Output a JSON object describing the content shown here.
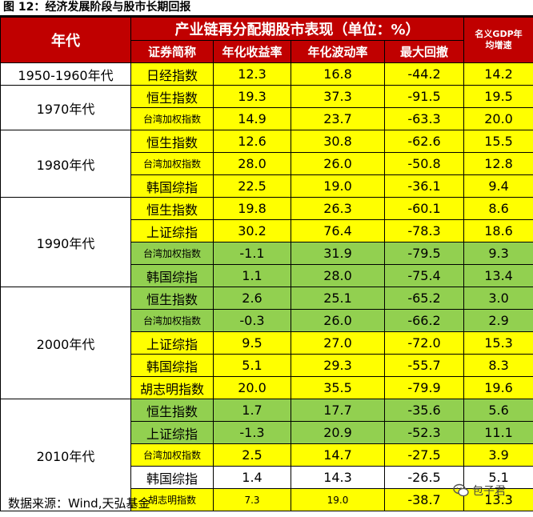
{
  "figure_title": "图 12：经济发展阶段与股市长期回报",
  "header": {
    "era": "年代",
    "main": "产业链再分配期股市表现（单位：%）",
    "gdp": [
      "名义GDP年",
      "均增速"
    ],
    "cols": [
      "证券简称",
      "年化收益率",
      "年化波动率",
      "最大回撤"
    ]
  },
  "rows": [
    {
      "era": "1950-1960年代",
      "name": "日经指数",
      "ret": "12.3",
      "vol": "16.8",
      "dd": "-44.2",
      "gdp": "14.2",
      "bg": "yellow"
    },
    {
      "era": "1970年代",
      "name": "恒生指数",
      "ret": "19.3",
      "vol": "37.3",
      "dd": "-91.5",
      "gdp": "19.5",
      "bg": "yellow"
    },
    {
      "era": "",
      "name": "台湾加权指数",
      "ret": "14.9",
      "vol": "23.7",
      "dd": "-63.3",
      "gdp": "20.0",
      "bg": "yellow",
      "small_name": true
    },
    {
      "era": "1980年代",
      "name": "恒生指数",
      "ret": "12.6",
      "vol": "30.8",
      "dd": "-62.6",
      "gdp": "15.5",
      "bg": "yellow"
    },
    {
      "era": "",
      "name": "台湾加权指数",
      "ret": "28.0",
      "vol": "26.0",
      "dd": "-50.8",
      "gdp": "12.8",
      "bg": "yellow",
      "small_name": true
    },
    {
      "era": "",
      "name": "韩国综指",
      "ret": "22.5",
      "vol": "19.0",
      "dd": "-36.1",
      "gdp": "9.4",
      "bg": "yellow"
    },
    {
      "era": "1990年代",
      "name": "恒生指数",
      "ret": "19.8",
      "vol": "26.3",
      "dd": "-60.1",
      "gdp": "8.6",
      "bg": "yellow"
    },
    {
      "era": "",
      "name": "上证综指",
      "ret": "30.2",
      "vol": "76.4",
      "dd": "-78.3",
      "gdp": "18.6",
      "bg": "yellow"
    },
    {
      "era": "",
      "name": "台湾加权指数",
      "ret": "-1.1",
      "vol": "31.9",
      "dd": "-79.5",
      "gdp": "9.3",
      "bg": "green",
      "small_name": true
    },
    {
      "era": "",
      "name": "韩国综指",
      "ret": "1.1",
      "vol": "28.0",
      "dd": "-75.4",
      "gdp": "13.4",
      "bg": "green"
    },
    {
      "era": "2000年代",
      "name": "恒生指数",
      "ret": "2.6",
      "vol": "25.1",
      "dd": "-65.2",
      "gdp": "3.0",
      "bg": "green"
    },
    {
      "era": "",
      "name": "台湾加权指数",
      "ret": "-0.3",
      "vol": "26.0",
      "dd": "-66.2",
      "gdp": "2.9",
      "bg": "green",
      "small_name": true
    },
    {
      "era": "",
      "name": "上证综指",
      "ret": "9.5",
      "vol": "27.0",
      "dd": "-72.0",
      "gdp": "15.3",
      "bg": "yellow"
    },
    {
      "era": "",
      "name": "韩国综指",
      "ret": "5.1",
      "vol": "29.3",
      "dd": "-55.7",
      "gdp": "8.3",
      "bg": "yellow"
    },
    {
      "era": "",
      "name": "胡志明指数",
      "ret": "20.0",
      "vol": "35.5",
      "dd": "-79.9",
      "gdp": "19.6",
      "bg": "yellow"
    },
    {
      "era": "2010年代",
      "name": "恒生指数",
      "ret": "1.7",
      "vol": "17.7",
      "dd": "-35.6",
      "gdp": "5.6",
      "bg": "green"
    },
    {
      "era": "",
      "name": "上证综指",
      "ret": "-1.3",
      "vol": "20.9",
      "dd": "-52.3",
      "gdp": "11.1",
      "bg": "green"
    },
    {
      "era": "",
      "name": "台湾加权指数",
      "ret": "2.5",
      "vol": "14.7",
      "dd": "-27.5",
      "gdp": "3.9",
      "bg": "yellow",
      "small_name": true
    },
    {
      "era": "",
      "name": "韩国综指",
      "ret": "1.4",
      "vol": "14.3",
      "dd": "-26.5",
      "gdp": "5.1",
      "bg": "white"
    },
    {
      "era": "",
      "name": "胡志明指数",
      "ret": "7.3",
      "vol": "19.0",
      "dd": "-38.7",
      "gdp": "13.3",
      "bg": "yellow",
      "small_name": true,
      "small_nums": true
    }
  ],
  "era_groups": [
    {
      "label": "1950-1960年代",
      "span": 1
    },
    {
      "label": "1970年代",
      "span": 2
    },
    {
      "label": "1980年代",
      "span": 3
    },
    {
      "label": "1990年代",
      "span": 4
    },
    {
      "label": "2000年代",
      "span": 5
    },
    {
      "label": "2010年代",
      "span": 5
    }
  ],
  "source": "数据来源：Wind,天弘基金",
  "watermark": "包子君",
  "colors": {
    "header": "#c00000",
    "yellow": "#ffff00",
    "green": "#92d050"
  }
}
